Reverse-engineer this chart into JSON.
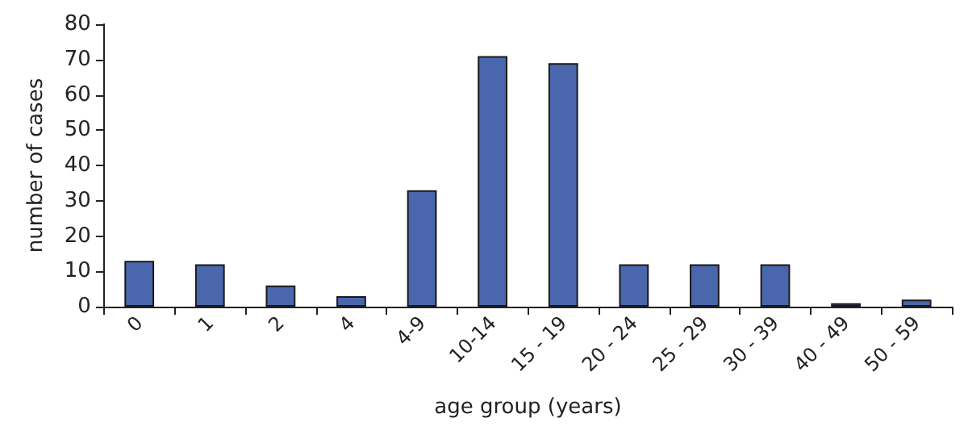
{
  "chart_data": {
    "type": "bar",
    "xlabel": "age group (years)",
    "ylabel": "number of cases",
    "categories": [
      "0",
      "1",
      "2",
      "4",
      "4-9",
      "10-14",
      "15 - 19",
      "20 - 24",
      "25 - 29",
      "30 - 39",
      "40 - 49",
      "50 - 59"
    ],
    "values": [
      13,
      12,
      6,
      3,
      33,
      71,
      69,
      12,
      12,
      12,
      1,
      2
    ],
    "color": "#4a66ad",
    "ylim": [
      0,
      80
    ],
    "yticks": [
      0,
      10,
      20,
      30,
      40,
      50,
      60,
      70,
      80
    ],
    "grid": false
  }
}
